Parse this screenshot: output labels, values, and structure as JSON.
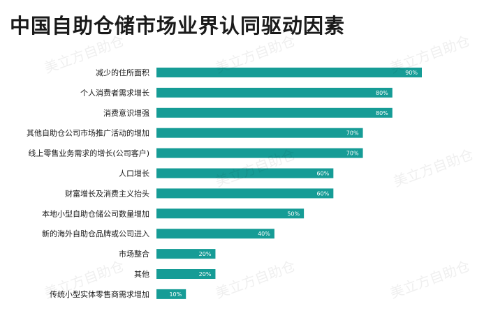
{
  "title": "中国自助仓储市场业界认同驱动因素",
  "watermark": "美立方自助仓",
  "colors": {
    "bar": "#169c96",
    "title": "#1a1a1a",
    "label": "#1a1a1a",
    "value_text": "#ffffff"
  },
  "chart_data": {
    "type": "bar",
    "orientation": "horizontal",
    "title": "中国自助仓储市场业界认同驱动因素",
    "xlabel": "",
    "ylabel": "",
    "xlim": [
      0,
      100
    ],
    "grid": false,
    "legend": "none",
    "categories": [
      "减少的住所面积",
      "个人消费者需求增长",
      "消费意识增强",
      "其他自助仓公司市场推广活动的增加",
      "线上零售业务需求的增长(公司客户)",
      "人口增长",
      "财富增长及消费主义抬头",
      "本地小型自助仓储公司数量增加",
      "新的海外自助仓品牌或公司进入",
      "市场整合",
      "其他",
      "传统小型实体零售商需求增加"
    ],
    "values": [
      90,
      80,
      80,
      70,
      70,
      60,
      60,
      50,
      40,
      20,
      20,
      10
    ],
    "value_labels": [
      "90%",
      "80%",
      "80%",
      "70%",
      "70%",
      "60%",
      "60%",
      "50%",
      "40%",
      "20%",
      "20%",
      "10%"
    ]
  }
}
